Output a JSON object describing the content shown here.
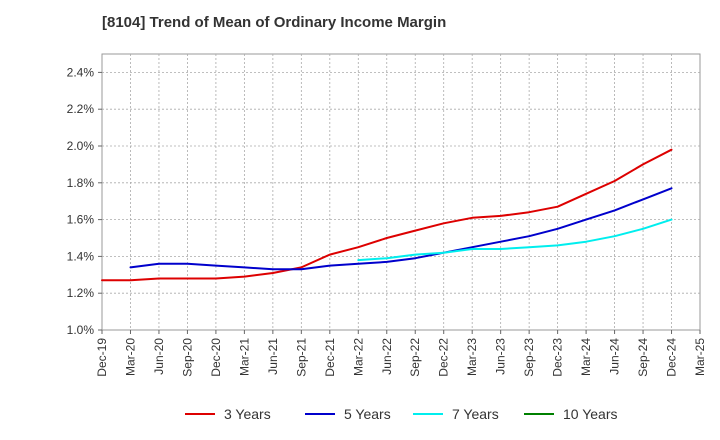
{
  "chart_data": {
    "type": "line",
    "title": "[8104]  Trend of Mean of Ordinary Income Margin",
    "xlabel": "",
    "ylabel": "",
    "x_ticks": [
      "Dec-19",
      "Mar-20",
      "Jun-20",
      "Sep-20",
      "Dec-20",
      "Mar-21",
      "Jun-21",
      "Sep-21",
      "Dec-21",
      "Mar-22",
      "Jun-22",
      "Sep-22",
      "Dec-22",
      "Mar-23",
      "Jun-23",
      "Sep-23",
      "Dec-23",
      "Mar-24",
      "Jun-24",
      "Sep-24",
      "Dec-24",
      "Mar-25"
    ],
    "y_ticks": [
      "1.0%",
      "1.2%",
      "1.4%",
      "1.6%",
      "1.8%",
      "2.0%",
      "2.2%",
      "2.4%"
    ],
    "ylim": [
      1.0,
      2.5
    ],
    "grid": true,
    "legend_position": "bottom",
    "series": [
      {
        "name": "3 Years",
        "color": "#dd0000",
        "x": [
          "Dec-19",
          "Mar-20",
          "Jun-20",
          "Sep-20",
          "Dec-20",
          "Mar-21",
          "Jun-21",
          "Sep-21",
          "Dec-21",
          "Mar-22",
          "Jun-22",
          "Sep-22",
          "Dec-22",
          "Mar-23",
          "Jun-23",
          "Sep-23",
          "Dec-23",
          "Mar-24",
          "Jun-24",
          "Sep-24",
          "Dec-24"
        ],
        "values": [
          1.27,
          1.27,
          1.28,
          1.28,
          1.28,
          1.29,
          1.31,
          1.34,
          1.41,
          1.45,
          1.5,
          1.54,
          1.58,
          1.61,
          1.62,
          1.64,
          1.67,
          1.74,
          1.81,
          1.9,
          1.98
        ]
      },
      {
        "name": "5 Years",
        "color": "#0000cc",
        "x": [
          "Mar-20",
          "Jun-20",
          "Sep-20",
          "Dec-20",
          "Mar-21",
          "Jun-21",
          "Sep-21",
          "Dec-21",
          "Mar-22",
          "Jun-22",
          "Sep-22",
          "Dec-22",
          "Mar-23",
          "Jun-23",
          "Sep-23",
          "Dec-23",
          "Mar-24",
          "Jun-24",
          "Sep-24",
          "Dec-24"
        ],
        "values": [
          1.34,
          1.36,
          1.36,
          1.35,
          1.34,
          1.33,
          1.33,
          1.35,
          1.36,
          1.37,
          1.39,
          1.42,
          1.45,
          1.48,
          1.51,
          1.55,
          1.6,
          1.65,
          1.71,
          1.77
        ]
      },
      {
        "name": "7 Years",
        "color": "#00eeee",
        "x": [
          "Mar-22",
          "Jun-22",
          "Sep-22",
          "Dec-22",
          "Mar-23",
          "Jun-23",
          "Sep-23",
          "Dec-23",
          "Mar-24",
          "Jun-24",
          "Sep-24",
          "Dec-24"
        ],
        "values": [
          1.38,
          1.39,
          1.41,
          1.42,
          1.44,
          1.44,
          1.45,
          1.46,
          1.48,
          1.51,
          1.55,
          1.6
        ]
      },
      {
        "name": "10 Years",
        "color": "#008000",
        "x": [],
        "values": []
      }
    ]
  }
}
